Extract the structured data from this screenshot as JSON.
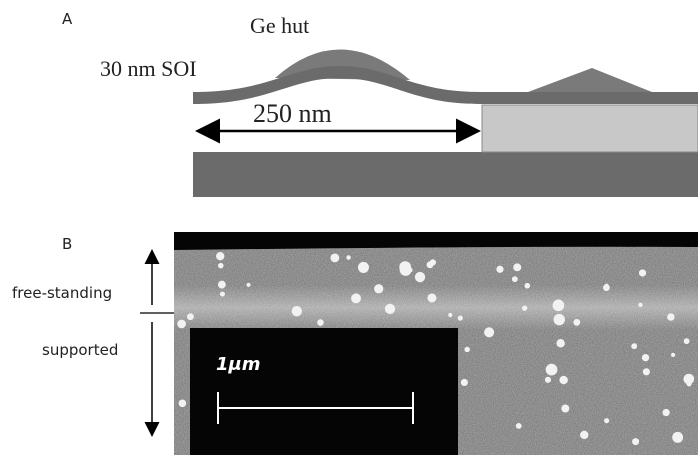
{
  "panel_a": {
    "label": "A",
    "ge_hut": "Ge hut",
    "soi": "30 nm SOI",
    "width": "250 nm"
  },
  "panel_b": {
    "label": "B",
    "free_standing": "free-standing",
    "supported": "supported",
    "scale": "1μm"
  }
}
